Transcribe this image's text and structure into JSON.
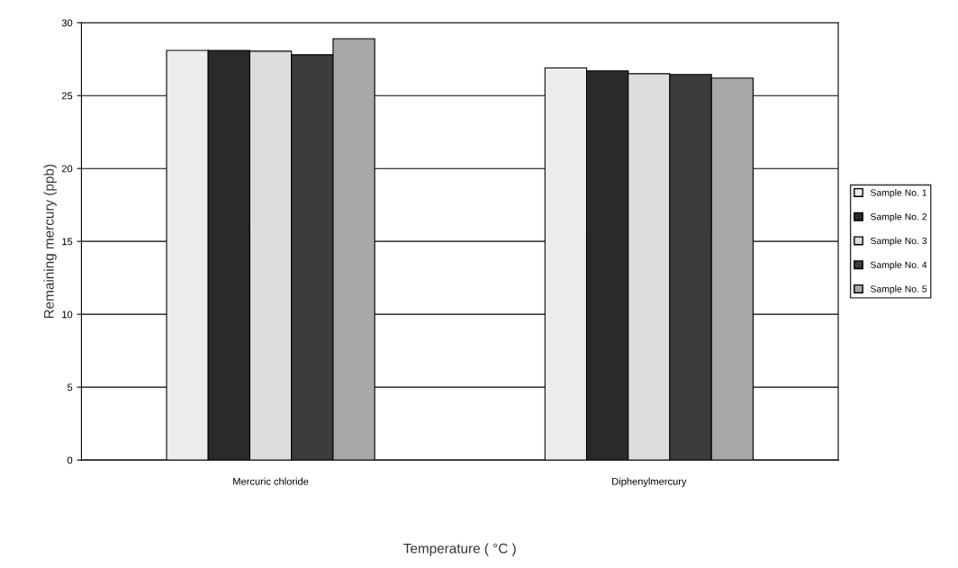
{
  "chart_data": {
    "type": "bar",
    "xlabel": "Temperature ( °C )",
    "ylabel": "Remaining mercury (ppb)",
    "categories": [
      "Mercuric chloride",
      "Diphenylmercury"
    ],
    "series": [
      {
        "name": "Sample No. 1",
        "color": "#ececec",
        "values": [
          28.1,
          26.9
        ]
      },
      {
        "name": "Sample No. 2",
        "color": "#2a2a2a",
        "values": [
          28.1,
          26.7
        ]
      },
      {
        "name": "Sample No. 3",
        "color": "#dcdcdc",
        "values": [
          28.05,
          26.5
        ]
      },
      {
        "name": "Sample No. 4",
        "color": "#3c3c3c",
        "values": [
          27.8,
          26.45
        ]
      },
      {
        "name": "Sample No. 5",
        "color": "#a8a8a8",
        "values": [
          28.9,
          26.2
        ]
      }
    ],
    "ylim": [
      0,
      30
    ],
    "yticks": [
      0,
      5,
      10,
      15,
      20,
      25,
      30
    ],
    "grid": "y",
    "legend": "right"
  }
}
